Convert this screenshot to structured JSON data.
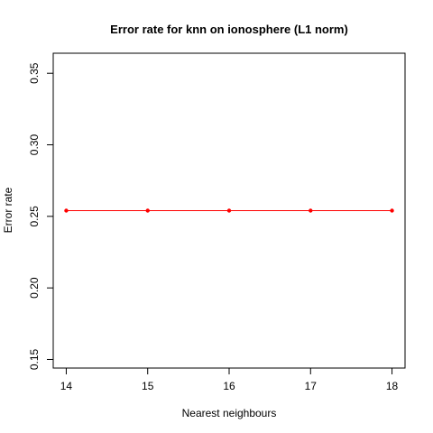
{
  "chart_data": {
    "type": "line",
    "title": "Error rate for knn on ionosphere (L1 norm)",
    "xlabel": "Nearest neighbours",
    "ylabel": "Error rate",
    "x": [
      14,
      15,
      16,
      17,
      18
    ],
    "series": [
      {
        "values": [
          0.254,
          0.254,
          0.254,
          0.254,
          0.254
        ],
        "color": "#ff0000"
      }
    ],
    "xlim": [
      13.84,
      18.16
    ],
    "ylim": [
      0.144,
      0.364
    ],
    "xticks": [
      14,
      15,
      16,
      17,
      18
    ],
    "yticks": [
      0.15,
      0.2,
      0.25,
      0.3,
      0.35
    ],
    "ytick_labels": [
      "0.15",
      "0.20",
      "0.25",
      "0.30",
      "0.35"
    ],
    "grid": false,
    "legend": "none"
  }
}
